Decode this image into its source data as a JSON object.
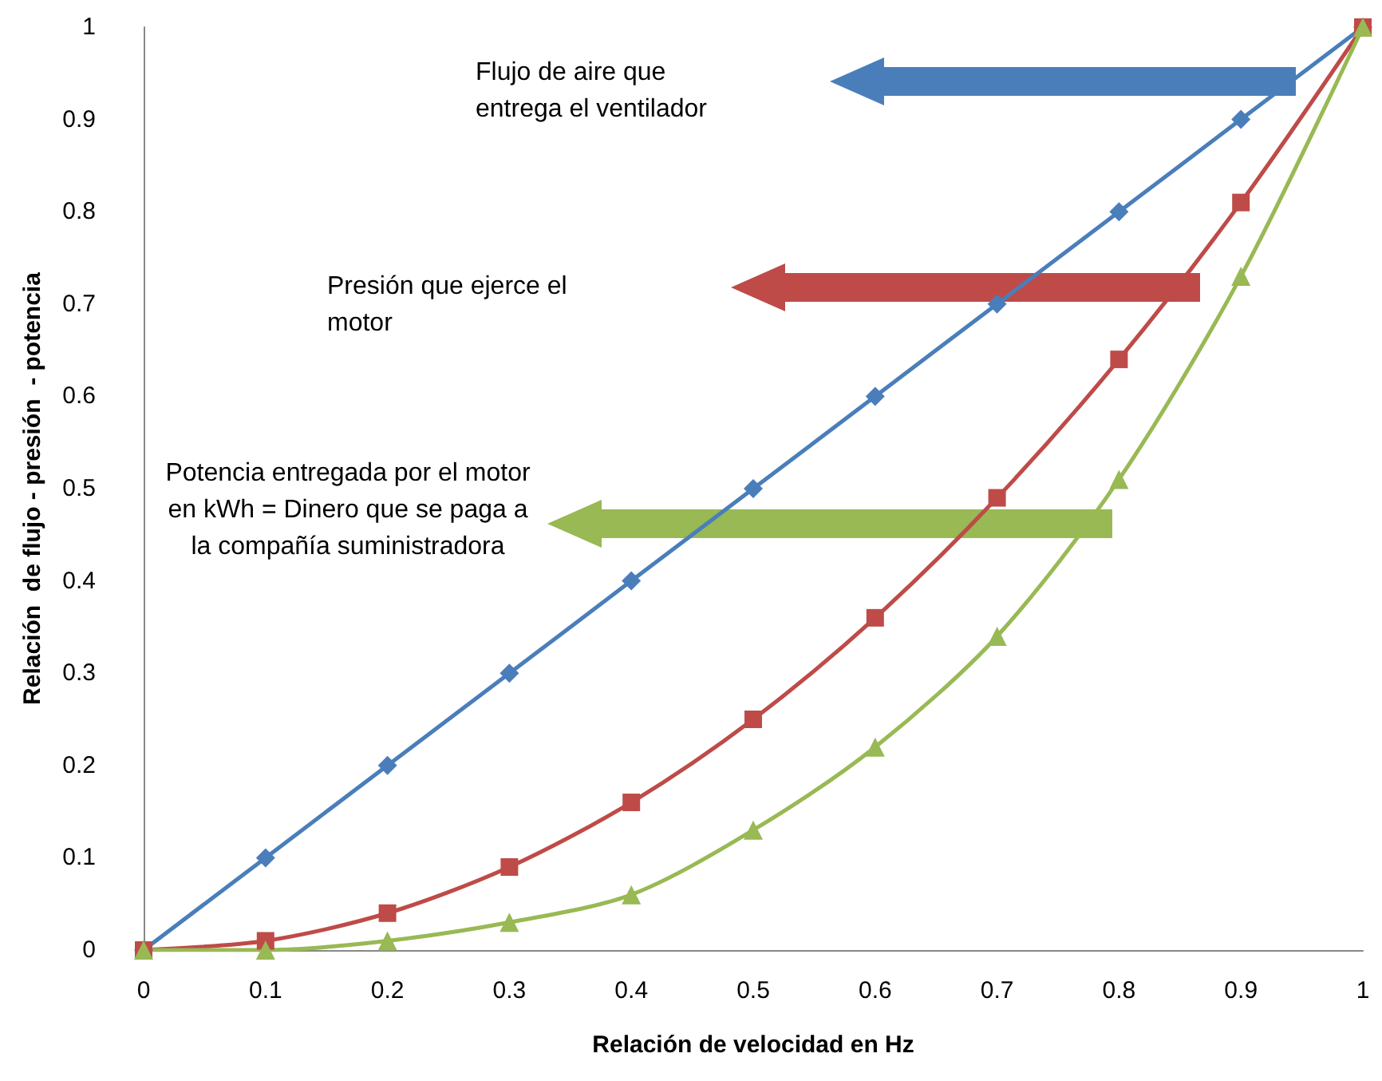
{
  "chart_data": {
    "type": "line",
    "xlabel": "Relación de velocidad en Hz",
    "ylabel": "Relación  de flujo - presión  - potencia",
    "x": [
      0,
      0.1,
      0.2,
      0.3,
      0.4,
      0.5,
      0.6,
      0.7,
      0.8,
      0.9,
      1
    ],
    "series": [
      {
        "color": "#4a7ebb",
        "marker": "diamond",
        "values": [
          0,
          0.1,
          0.2,
          0.3,
          0.4,
          0.5,
          0.6,
          0.7,
          0.8,
          0.9,
          1
        ]
      },
      {
        "color": "#be4b48",
        "marker": "square",
        "values": [
          0,
          0.01,
          0.04,
          0.09,
          0.16,
          0.25,
          0.36,
          0.49,
          0.64,
          0.81,
          1
        ]
      },
      {
        "color": "#98b954",
        "marker": "triangle",
        "values": [
          0,
          0,
          0.01,
          0.03,
          0.06,
          0.13,
          0.22,
          0.34,
          0.51,
          0.73,
          1
        ]
      }
    ],
    "annotations": [
      "Flujo de aire que entrega el ventilador",
      "Presión que ejerce el motor",
      "Potencia entregada por el motor en kWh = Dinero que se paga a la compañía suministradora"
    ],
    "xlim": [
      0,
      1
    ],
    "xticks": [
      0,
      0.1,
      0.2,
      0.3,
      0.4,
      0.5,
      0.6,
      0.7,
      0.8,
      0.9,
      1
    ],
    "ylim": [
      0,
      1
    ],
    "yticks": [
      0,
      0.1,
      0.2,
      0.3,
      0.4,
      0.5,
      0.6,
      0.7,
      0.8,
      0.9,
      1
    ],
    "grid": false
  }
}
